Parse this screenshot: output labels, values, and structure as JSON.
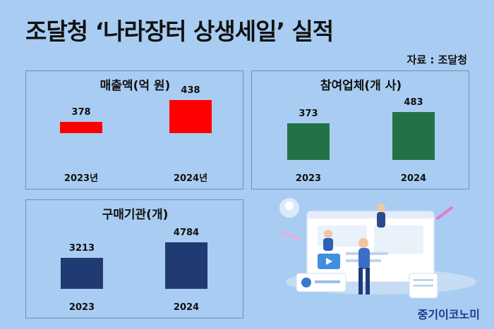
{
  "header": {
    "title": "조달청 ‘나라장터 상생세일’ 실적",
    "source": "자료 : 조달청"
  },
  "footer": {
    "brand": "중기이코노미"
  },
  "chart_data": [
    {
      "type": "bar",
      "title": "매출액(억 원)",
      "categories": [
        "2023년",
        "2024년"
      ],
      "values": [
        378,
        438
      ],
      "color": "#ff0000"
    },
    {
      "type": "bar",
      "title": "참여업체(개 사)",
      "categories": [
        "2023",
        "2024"
      ],
      "values": [
        373,
        483
      ],
      "color": "#217346"
    },
    {
      "type": "bar",
      "title": "구매기관(개)",
      "categories": [
        "2023",
        "2024"
      ],
      "values": [
        3213,
        4784
      ],
      "color": "#203a72"
    }
  ]
}
